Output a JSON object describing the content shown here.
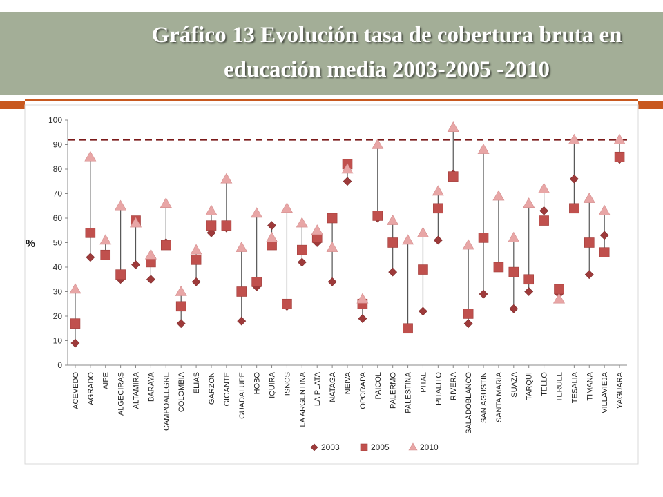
{
  "slide": {
    "title_line1": "Gráfico 13 Evolución tasa de cobertura bruta en",
    "title_line2": "educación media 2003-2005 -2010"
  },
  "colors": {
    "band": "#a3ae97",
    "accent": "#c8581f",
    "s2003": "#9e3a3a",
    "s2005": "#c0504d",
    "s2010": "#e8a6a6",
    "refline": "#7b1a1a",
    "connector": "#555555"
  },
  "chart_data": {
    "type": "scatter",
    "title": "",
    "ylabel": "%",
    "xlabel": "",
    "ylim": [
      0,
      100
    ],
    "yticks": [
      0,
      10,
      20,
      30,
      40,
      50,
      60,
      70,
      80,
      90,
      100
    ],
    "grid": false,
    "legend": "bottom",
    "reference_line": 92,
    "categories": [
      "ACEVEDO",
      "AGRADO",
      "AIPE",
      "ALGECIRAS",
      "ALTAMIRA",
      "BARAYA",
      "CAMPOALEGRE",
      "COLOMBIA",
      "ELIAS",
      "GARZON",
      "GIGANTE",
      "GUADALUPE",
      "HOBO",
      "IQUIRA",
      "ISNOS",
      "LA ARGENTINA",
      "LA PLATA",
      "NATAGA",
      "NEIVA",
      "OPORAPA",
      "PAICOL",
      "PALERMO",
      "PALESTINA",
      "PITAL",
      "PITALITO",
      "RIVERA",
      "SALADOBLANCO",
      "SAN AGUSTIN",
      "SANTA MARIA",
      "SUAZA",
      "TARQUI",
      "TELLO",
      "TERUEL",
      "TESALIA",
      "TIMANA",
      "VILLAVIEJA",
      "YAGUARA"
    ],
    "series": [
      {
        "name": "2003",
        "marker": "diamond",
        "values": [
          9,
          44,
          45,
          35,
          41,
          35,
          50,
          17,
          34,
          54,
          56,
          18,
          32,
          57,
          24,
          42,
          50,
          34,
          75,
          19,
          60,
          38,
          15,
          22,
          51,
          78,
          17,
          29,
          40,
          23,
          30,
          63,
          29,
          76,
          37,
          53,
          84
        ]
      },
      {
        "name": "2005",
        "marker": "square",
        "values": [
          17,
          54,
          45,
          37,
          59,
          42,
          49,
          24,
          43,
          57,
          57,
          30,
          34,
          49,
          25,
          47,
          52,
          60,
          82,
          25,
          61,
          50,
          15,
          39,
          64,
          77,
          21,
          52,
          40,
          38,
          35,
          59,
          31,
          64,
          50,
          46,
          85
        ]
      },
      {
        "name": "2010",
        "marker": "triangle",
        "values": [
          31,
          85,
          51,
          65,
          58,
          45,
          66,
          30,
          47,
          63,
          76,
          48,
          62,
          52,
          64,
          58,
          55,
          48,
          80,
          27,
          90,
          59,
          51,
          54,
          71,
          97,
          49,
          88,
          69,
          52,
          66,
          72,
          27,
          92,
          68,
          63,
          92
        ]
      }
    ]
  }
}
